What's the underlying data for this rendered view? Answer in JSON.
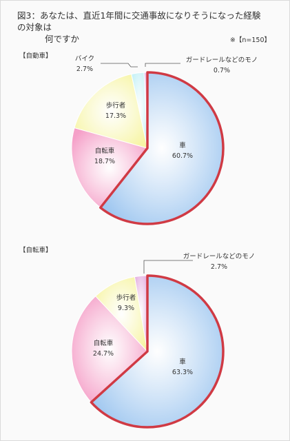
{
  "title_line1": "図3：あなたは、直近1年間に交通事故になりそうになった経験の対象は",
  "title_line2": "何ですか",
  "note": "※【n=150】",
  "colors": {
    "車": "#9fc7f0",
    "自転車": "#f5a0c8",
    "歩行者": "#f7f5a6",
    "バイク": "#c8f2f7",
    "ガードレールなどのモノ": "#e6b5e3",
    "highlight": "#d03a44"
  },
  "chart_data": [
    {
      "type": "pie",
      "title": "【自動車】",
      "categories": [
        "車",
        "自転車",
        "歩行者",
        "バイク",
        "ガードレールなどのモノ"
      ],
      "values": [
        60.7,
        18.7,
        17.3,
        2.7,
        0.7
      ],
      "value_labels": [
        "60.7%",
        "18.7%",
        "17.3%",
        "2.7%",
        "0.7%"
      ],
      "highlight": "車"
    },
    {
      "type": "pie",
      "title": "【自転車】",
      "categories": [
        "車",
        "自転車",
        "歩行者",
        "ガードレールなどのモノ"
      ],
      "values": [
        63.3,
        24.7,
        9.3,
        2.7
      ],
      "value_labels": [
        "63.3%",
        "24.7%",
        "9.3%",
        "2.7%"
      ],
      "highlight": "車"
    }
  ]
}
